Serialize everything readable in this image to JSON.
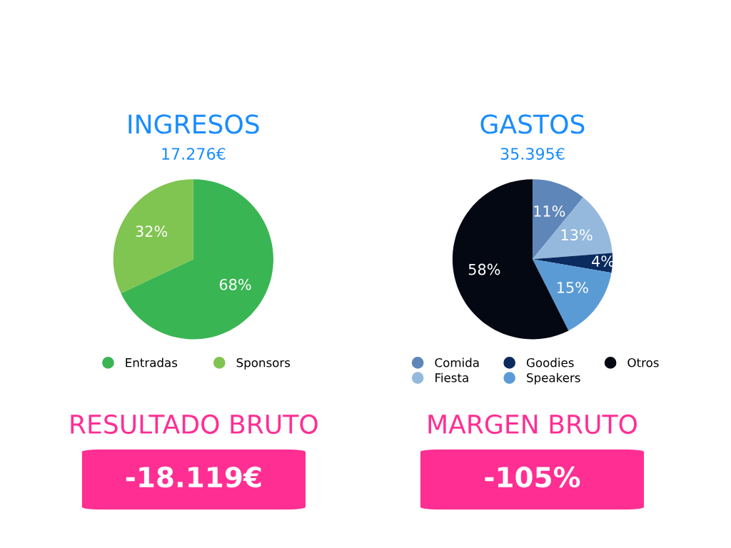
{
  "chart_data": [
    {
      "type": "pie",
      "title": "INGRESOS",
      "subtitle": "17.276€",
      "categories": [
        "Entradas",
        "Sponsors"
      ],
      "values": [
        68,
        32
      ],
      "colors": [
        "#3ab554",
        "#80c451"
      ],
      "value_labels": [
        "68%",
        "32%"
      ],
      "legend": "bottom"
    },
    {
      "type": "pie",
      "title": "GASTOS",
      "subtitle": "35.395€",
      "categories": [
        "Comida",
        "Fiesta",
        "Goodies",
        "Speakers",
        "Otros"
      ],
      "values": [
        11,
        13,
        4,
        15,
        58
      ],
      "colors": [
        "#5f86b8",
        "#95b9dc",
        "#0b2a5e",
        "#5b9bd5",
        "#040812"
      ],
      "value_labels": [
        "11%",
        "13%",
        "4%",
        "15%",
        "58%"
      ],
      "legend": "bottom"
    },
    {
      "type": "other",
      "title": "RESULTADO BRUTO",
      "annotations": [
        "-18.119€"
      ],
      "color": "#ff2e93"
    },
    {
      "type": "other",
      "title": "MARGEN BRUTO",
      "annotations": [
        "-105%"
      ],
      "color": "#ff2e93"
    }
  ]
}
